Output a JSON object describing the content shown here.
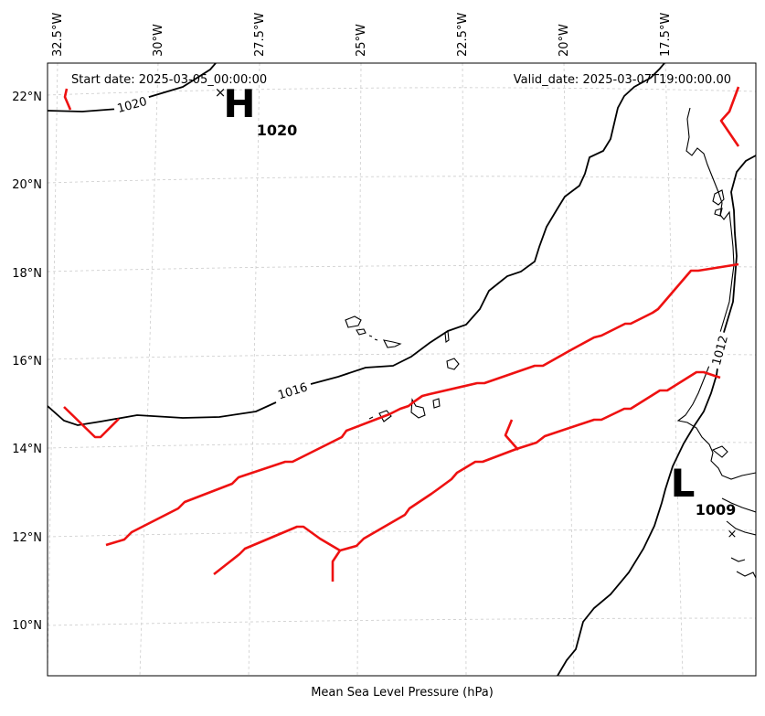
{
  "map": {
    "start_date": "Start date: 2025-03-05_00:00:00",
    "valid_date": "Valid_date: 2025-03-07T19:00:00.00",
    "xlabel": "Mean Sea Level Pressure (hPa)",
    "lon_labels": [
      "32.5°W",
      "30°W",
      "27.5°W",
      "25°W",
      "22.5°W",
      "20°W",
      "17.5°W"
    ],
    "lat_labels": [
      "22°N",
      "20°N",
      "18°N",
      "16°N",
      "14°N",
      "12°N",
      "10°N"
    ],
    "isobar_labels": [
      "1020",
      "1016",
      "1012"
    ],
    "high": {
      "symbol": "H",
      "value": "1020"
    },
    "low": {
      "symbol": "L",
      "value": "1009"
    },
    "colors": {
      "front": "#ee1111",
      "isobar": "#000000",
      "coast": "#000000",
      "grid": "#cccccc"
    }
  }
}
